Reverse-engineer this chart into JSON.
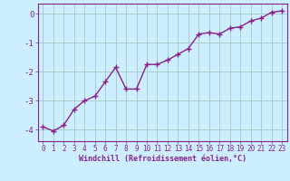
{
  "x": [
    0,
    1,
    2,
    3,
    4,
    5,
    6,
    7,
    8,
    9,
    10,
    11,
    12,
    13,
    14,
    15,
    16,
    17,
    18,
    19,
    20,
    21,
    22,
    23
  ],
  "y": [
    -3.9,
    -4.05,
    -3.85,
    -3.3,
    -3.0,
    -2.85,
    -2.35,
    -1.85,
    -2.6,
    -2.6,
    -1.75,
    -1.75,
    -1.6,
    -1.4,
    -1.2,
    -0.7,
    -0.65,
    -0.7,
    -0.5,
    -0.45,
    -0.25,
    -0.15,
    0.05,
    0.1
  ],
  "line_color": "#882288",
  "marker": "+",
  "marker_size": 4,
  "bg_color": "#cceeff",
  "grid_color": "#aacccc",
  "xlabel": "Windchill (Refroidissement éolien,°C)",
  "xlabel_color": "#882288",
  "tick_color": "#882288",
  "ylim": [
    -4.4,
    0.35
  ],
  "xlim": [
    -0.5,
    23.5
  ],
  "yticks": [
    0,
    -1,
    -2,
    -3,
    -4
  ],
  "xticks": [
    0,
    1,
    2,
    3,
    4,
    5,
    6,
    7,
    8,
    9,
    10,
    11,
    12,
    13,
    14,
    15,
    16,
    17,
    18,
    19,
    20,
    21,
    22,
    23
  ],
  "linewidth": 1.0,
  "tick_fontsize": 5.5,
  "ytick_fontsize": 6.5,
  "xlabel_fontsize": 6.0
}
